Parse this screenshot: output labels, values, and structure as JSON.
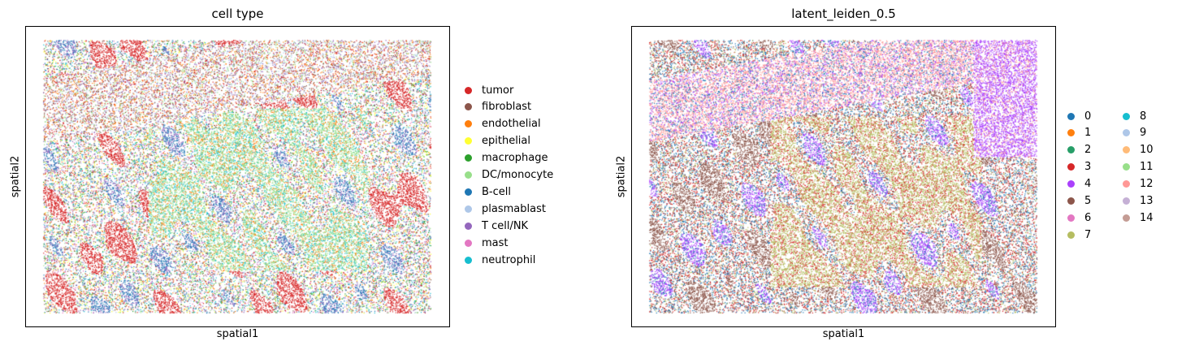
{
  "chart_data": [
    {
      "type": "scatter",
      "title": "cell type",
      "xlabel": "spatial1",
      "ylabel": "spatial2",
      "grid": false,
      "legend_position": "right",
      "series": [
        {
          "name": "tumor",
          "color": "#d62728"
        },
        {
          "name": "fibroblast",
          "color": "#8c564b"
        },
        {
          "name": "endothelial",
          "color": "#ff7f0e"
        },
        {
          "name": "epithelial",
          "color": "#ffff33"
        },
        {
          "name": "macrophage",
          "color": "#2ca02c"
        },
        {
          "name": "DC/monocyte",
          "color": "#98df8a"
        },
        {
          "name": "B-cell",
          "color": "#1f77b4"
        },
        {
          "name": "plasmablast",
          "color": "#aec7e8"
        },
        {
          "name": "T cell/NK",
          "color": "#9467bd"
        },
        {
          "name": "mast",
          "color": "#e377c2"
        },
        {
          "name": "neutrophil",
          "color": "#17becf"
        }
      ]
    },
    {
      "type": "scatter",
      "title": "latent_leiden_0.5",
      "xlabel": "spatial1",
      "ylabel": "spatial2",
      "grid": false,
      "legend_position": "right",
      "series": [
        {
          "name": "0",
          "color": "#1f77b4"
        },
        {
          "name": "1",
          "color": "#ff7f0e"
        },
        {
          "name": "2",
          "color": "#279e68"
        },
        {
          "name": "3",
          "color": "#d62728"
        },
        {
          "name": "4",
          "color": "#aa40fc"
        },
        {
          "name": "5",
          "color": "#8c564b"
        },
        {
          "name": "6",
          "color": "#e377c2"
        },
        {
          "name": "7",
          "color": "#b5bd61"
        },
        {
          "name": "8",
          "color": "#17becf"
        },
        {
          "name": "9",
          "color": "#aec7e8"
        },
        {
          "name": "10",
          "color": "#ffbb78"
        },
        {
          "name": "11",
          "color": "#98df8a"
        },
        {
          "name": "12",
          "color": "#ff9896"
        },
        {
          "name": "13",
          "color": "#c5b0d5"
        },
        {
          "name": "14",
          "color": "#c49c94"
        }
      ]
    }
  ]
}
